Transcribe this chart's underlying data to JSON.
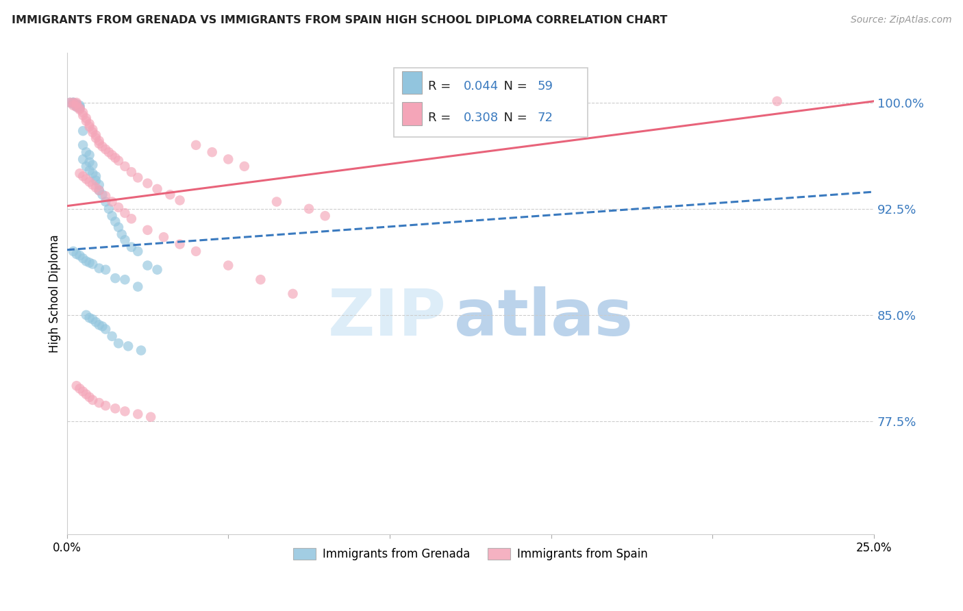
{
  "title": "IMMIGRANTS FROM GRENADA VS IMMIGRANTS FROM SPAIN HIGH SCHOOL DIPLOMA CORRELATION CHART",
  "source": "Source: ZipAtlas.com",
  "ylabel": "High School Diploma",
  "ytick_labels": [
    "100.0%",
    "92.5%",
    "85.0%",
    "77.5%"
  ],
  "ytick_values": [
    1.0,
    0.925,
    0.85,
    0.775
  ],
  "xlim": [
    0.0,
    0.25
  ],
  "ylim": [
    0.695,
    1.035
  ],
  "watermark_zip": "ZIP",
  "watermark_atlas": "atlas",
  "grenada_color": "#92c5de",
  "spain_color": "#f4a5b8",
  "grenada_line_color": "#3a7abf",
  "spain_line_color": "#e8637a",
  "ytick_color": "#3a7abf",
  "legend_color_box_blue": "#92c5de",
  "legend_color_box_pink": "#f4a5b8",
  "legend_R_value_grenada": "0.044",
  "legend_N_value_grenada": "59",
  "legend_R_value_spain": "0.308",
  "legend_N_value_spain": "72",
  "legend_value_color": "#3a7abf",
  "legend_text_color": "#222222",
  "spain_line_y0": 0.927,
  "spain_line_y1": 1.001,
  "grenada_line_y0": 0.896,
  "grenada_line_y1": 0.937,
  "grenada_scatter_x": [
    0.001,
    0.002,
    0.002,
    0.002,
    0.003,
    0.003,
    0.003,
    0.004,
    0.004,
    0.004,
    0.005,
    0.005,
    0.005,
    0.006,
    0.006,
    0.007,
    0.007,
    0.007,
    0.008,
    0.008,
    0.009,
    0.009,
    0.01,
    0.01,
    0.011,
    0.012,
    0.013,
    0.014,
    0.015,
    0.016,
    0.017,
    0.018,
    0.02,
    0.022,
    0.025,
    0.028,
    0.002,
    0.003,
    0.004,
    0.005,
    0.006,
    0.007,
    0.008,
    0.01,
    0.012,
    0.015,
    0.018,
    0.022,
    0.006,
    0.007,
    0.008,
    0.009,
    0.01,
    0.011,
    0.012,
    0.014,
    0.016,
    0.019,
    0.023
  ],
  "grenada_scatter_y": [
    1.0,
    1.0,
    0.999,
    1.0,
    0.997,
    0.998,
    0.999,
    0.996,
    0.997,
    0.998,
    0.96,
    0.97,
    0.98,
    0.955,
    0.965,
    0.952,
    0.958,
    0.963,
    0.95,
    0.956,
    0.945,
    0.948,
    0.942,
    0.938,
    0.935,
    0.93,
    0.925,
    0.92,
    0.916,
    0.912,
    0.907,
    0.903,
    0.898,
    0.895,
    0.885,
    0.882,
    0.895,
    0.893,
    0.892,
    0.89,
    0.888,
    0.887,
    0.886,
    0.883,
    0.882,
    0.876,
    0.875,
    0.87,
    0.85,
    0.848,
    0.847,
    0.845,
    0.843,
    0.842,
    0.84,
    0.835,
    0.83,
    0.828,
    0.825
  ],
  "spain_scatter_x": [
    0.001,
    0.002,
    0.002,
    0.003,
    0.003,
    0.003,
    0.004,
    0.004,
    0.005,
    0.005,
    0.006,
    0.006,
    0.007,
    0.007,
    0.008,
    0.008,
    0.009,
    0.009,
    0.01,
    0.01,
    0.011,
    0.012,
    0.013,
    0.014,
    0.015,
    0.016,
    0.018,
    0.02,
    0.022,
    0.025,
    0.028,
    0.032,
    0.035,
    0.04,
    0.045,
    0.05,
    0.055,
    0.065,
    0.075,
    0.08,
    0.004,
    0.005,
    0.006,
    0.007,
    0.008,
    0.009,
    0.01,
    0.012,
    0.014,
    0.016,
    0.018,
    0.02,
    0.025,
    0.03,
    0.035,
    0.04,
    0.05,
    0.06,
    0.07,
    0.003,
    0.004,
    0.005,
    0.006,
    0.007,
    0.008,
    0.01,
    0.012,
    0.015,
    0.018,
    0.022,
    0.026,
    0.22
  ],
  "spain_scatter_y": [
    1.0,
    1.0,
    0.998,
    1.0,
    0.997,
    0.999,
    0.996,
    0.995,
    0.993,
    0.991,
    0.989,
    0.987,
    0.985,
    0.983,
    0.981,
    0.979,
    0.977,
    0.975,
    0.973,
    0.971,
    0.969,
    0.967,
    0.965,
    0.963,
    0.961,
    0.959,
    0.955,
    0.951,
    0.947,
    0.943,
    0.939,
    0.935,
    0.931,
    0.97,
    0.965,
    0.96,
    0.955,
    0.93,
    0.925,
    0.92,
    0.95,
    0.948,
    0.946,
    0.944,
    0.942,
    0.94,
    0.938,
    0.934,
    0.93,
    0.926,
    0.922,
    0.918,
    0.91,
    0.905,
    0.9,
    0.895,
    0.885,
    0.875,
    0.865,
    0.8,
    0.798,
    0.796,
    0.794,
    0.792,
    0.79,
    0.788,
    0.786,
    0.784,
    0.782,
    0.78,
    0.778,
    1.001
  ]
}
